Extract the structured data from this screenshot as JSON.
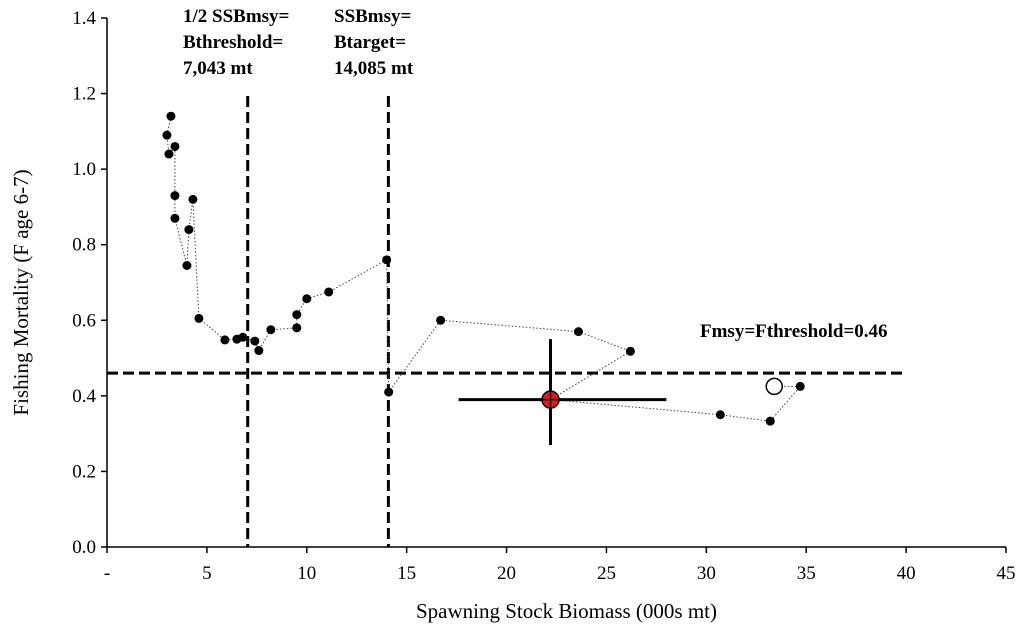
{
  "chart_data": {
    "type": "scatter",
    "xlabel": "Spawning Stock Biomass (000s mt)",
    "ylabel": "Fishing Mortality (F age 6-7)",
    "xlim": [
      0,
      45
    ],
    "ylim": [
      0,
      1.4
    ],
    "x_ticks": [
      "-",
      "5",
      "10",
      "15",
      "20",
      "25",
      "30",
      "35",
      "40",
      "45"
    ],
    "y_ticks": [
      "0.0",
      "0.2",
      "0.4",
      "0.6",
      "0.8",
      "1.0",
      "1.2",
      "1.4"
    ],
    "grid": false,
    "series": [
      {
        "style": "black dots joined by dotted line",
        "points": [
          [
            3.2,
            1.14
          ],
          [
            3.0,
            1.09
          ],
          [
            3.1,
            1.04
          ],
          [
            3.4,
            1.06
          ],
          [
            3.4,
            0.93
          ],
          [
            3.4,
            0.87
          ],
          [
            4.0,
            0.745
          ],
          [
            4.1,
            0.84
          ],
          [
            4.3,
            0.92
          ],
          [
            4.6,
            0.605
          ],
          [
            5.9,
            0.548
          ],
          [
            6.5,
            0.55
          ],
          [
            6.8,
            0.555
          ],
          [
            7.4,
            0.545
          ],
          [
            7.6,
            0.52
          ],
          [
            8.2,
            0.575
          ],
          [
            9.5,
            0.58
          ],
          [
            9.5,
            0.615
          ],
          [
            10.0,
            0.657
          ],
          [
            11.1,
            0.675
          ],
          [
            14.0,
            0.76
          ],
          [
            14.1,
            0.41
          ],
          [
            16.7,
            0.6
          ],
          [
            23.6,
            0.57
          ],
          [
            26.2,
            0.518
          ],
          [
            22.2,
            0.39
          ],
          [
            30.7,
            0.35
          ],
          [
            33.2,
            0.333
          ],
          [
            34.7,
            0.425
          ],
          [
            33.4,
            0.425
          ]
        ]
      }
    ],
    "current_estimate": {
      "x": 22.2,
      "y": 0.39,
      "x_interval": [
        17.6,
        28.0
      ],
      "y_interval": [
        0.27,
        0.55
      ],
      "color": "#e31a1c"
    },
    "adjusted_point": {
      "x": 33.4,
      "y": 0.425
    },
    "reference_lines": {
      "fmsy": 0.46,
      "half_ssbmsy": 7.043,
      "ssbmsy": 14.085
    },
    "annotations": {
      "fmsy_label": "Fmsy=Fthreshold=0.46",
      "half_ssbmsy_lines": [
        "1/2 SSBmsy=",
        "Bthreshold=",
        "7,043 mt"
      ],
      "ssbmsy_lines": [
        "SSBmsy=",
        "Btarget=",
        "14,085 mt"
      ]
    }
  }
}
